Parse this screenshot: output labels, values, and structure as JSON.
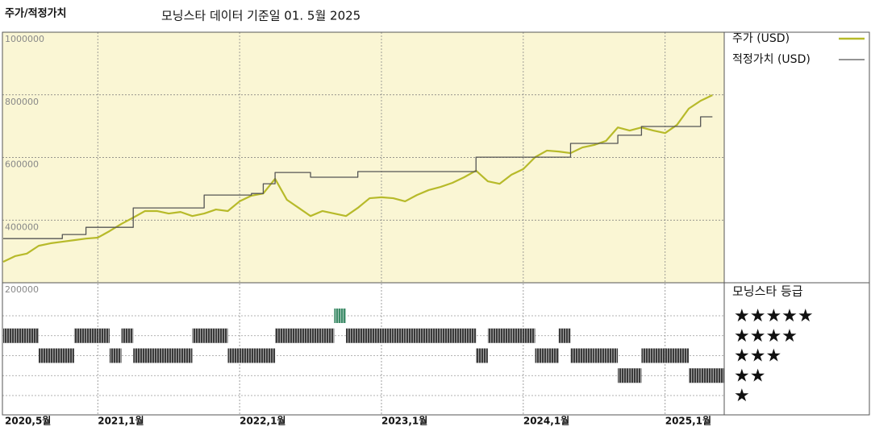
{
  "chart_data": {
    "type": "line",
    "title": "주가/적정가치",
    "subtitle": "모닝스타 데이터 기준일 01. 5월 2025",
    "x": [
      "2020-05",
      "2020-06",
      "2020-07",
      "2020-08",
      "2020-09",
      "2020-10",
      "2020-11",
      "2020-12",
      "2021-01",
      "2021-02",
      "2021-03",
      "2021-04",
      "2021-05",
      "2021-06",
      "2021-07",
      "2021-08",
      "2021-09",
      "2021-10",
      "2021-11",
      "2021-12",
      "2022-01",
      "2022-02",
      "2022-03",
      "2022-04",
      "2022-05",
      "2022-06",
      "2022-07",
      "2022-08",
      "2022-09",
      "2022-10",
      "2022-11",
      "2022-12",
      "2023-01",
      "2023-02",
      "2023-03",
      "2023-04",
      "2023-05",
      "2023-06",
      "2023-07",
      "2023-08",
      "2023-09",
      "2023-10",
      "2023-11",
      "2023-12",
      "2024-01",
      "2024-02",
      "2024-03",
      "2024-04",
      "2024-05",
      "2024-06",
      "2024-07",
      "2024-08",
      "2024-09",
      "2024-10",
      "2024-11",
      "2024-12",
      "2025-01",
      "2025-02",
      "2025-03",
      "2025-04",
      "2025-05"
    ],
    "xlim": [
      "2020-05",
      "2025-06"
    ],
    "xticks": [
      {
        "value": "2020-05",
        "label": "2020,5월"
      },
      {
        "value": "2021-01",
        "label": "2021,1월"
      },
      {
        "value": "2022-01",
        "label": "2022,1월"
      },
      {
        "value": "2023-01",
        "label": "2023,1월"
      },
      {
        "value": "2024-01",
        "label": "2024,1월"
      },
      {
        "value": "2025-01",
        "label": "2025,1월"
      }
    ],
    "ylim": [
      200000,
      1000000
    ],
    "yticks": [
      200000,
      400000,
      600000,
      800000,
      1000000
    ],
    "grid": true,
    "background": "#faf6d4",
    "series": [
      {
        "name": "주가 (USD)",
        "color": "#b7ba2a",
        "values": [
          267000,
          285000,
          293000,
          318000,
          326000,
          331000,
          336000,
          341000,
          344000,
          365000,
          388000,
          408000,
          429000,
          429000,
          421000,
          426000,
          413000,
          421000,
          434000,
          429000,
          460000,
          478000,
          485000,
          532000,
          465000,
          439000,
          413000,
          429000,
          421000,
          413000,
          439000,
          470000,
          473000,
          470000,
          460000,
          480000,
          496000,
          506000,
          519000,
          537000,
          558000,
          524000,
          516000,
          545000,
          563000,
          601000,
          622000,
          619000,
          614000,
          632000,
          640000,
          653000,
          696000,
          686000,
          696000,
          686000,
          678000,
          704000,
          756000,
          781000,
          799000
        ]
      },
      {
        "name": "적정가치 (USD)",
        "color": "#555555",
        "step": true,
        "values": [
          341000,
          341000,
          341000,
          341000,
          341000,
          354000,
          354000,
          377000,
          377000,
          377000,
          377000,
          439000,
          439000,
          439000,
          439000,
          439000,
          439000,
          480000,
          480000,
          480000,
          480000,
          485000,
          516000,
          552000,
          552000,
          552000,
          537000,
          537000,
          537000,
          537000,
          555000,
          555000,
          555000,
          555000,
          555000,
          555000,
          555000,
          555000,
          555000,
          555000,
          601000,
          601000,
          601000,
          601000,
          601000,
          601000,
          601000,
          601000,
          645000,
          645000,
          645000,
          645000,
          671000,
          671000,
          699000,
          699000,
          699000,
          699000,
          699000,
          730000,
          730000
        ]
      }
    ],
    "ratings": {
      "title": "모닝스타 등급",
      "levels": [
        {
          "value": 5,
          "label": "★★★★★"
        },
        {
          "value": 4,
          "label": "★★★★"
        },
        {
          "value": 3,
          "label": "★★★"
        },
        {
          "value": 2,
          "label": "★★"
        },
        {
          "value": 1,
          "label": "★"
        }
      ],
      "level_colors": [
        "#3d8b68",
        "#3a3a3a",
        "#3a3a3a",
        "#3a3a3a",
        "#3a3a3a"
      ],
      "values": [
        4,
        4,
        4,
        3,
        3,
        3,
        4,
        4,
        4,
        3,
        4,
        3,
        3,
        3,
        3,
        3,
        4,
        4,
        4,
        3,
        3,
        3,
        3,
        4,
        4,
        4,
        4,
        4,
        5,
        4,
        4,
        4,
        4,
        4,
        4,
        4,
        4,
        4,
        4,
        4,
        3,
        4,
        4,
        4,
        4,
        3,
        3,
        4,
        3,
        3,
        3,
        3,
        2,
        2,
        3,
        3,
        3,
        3,
        2,
        2,
        2
      ]
    }
  }
}
